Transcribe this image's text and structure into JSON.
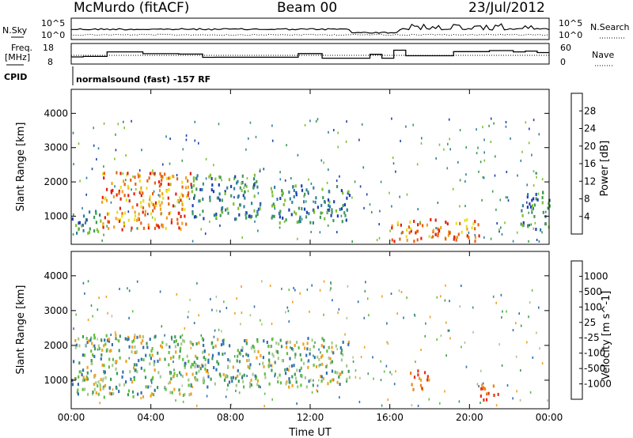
{
  "header": {
    "station": "McMurdo (fitACF)",
    "beam": "Beam 00",
    "date": "23/Jul/2012"
  },
  "top_panels": {
    "nsky_label": "N.Sky",
    "nsearch_label": "N.Search",
    "noise_ticks": [
      "10^5",
      "10^0"
    ],
    "freq_label_1": "Freq.",
    "freq_label_2": "[MHz]",
    "freq_ticks": [
      "18",
      "8"
    ],
    "nave_label": "Nave",
    "nave_ticks": [
      "60",
      "0"
    ],
    "cpid_label": "CPID",
    "cpid_text": "normalsound (fast) -157 RF"
  },
  "chart_data": [
    {
      "type": "heatmap",
      "panel": "power",
      "xlabel": "",
      "ylabel": "Slant Range [km]",
      "x_ticks": [
        "00:00",
        "04:00",
        "08:00",
        "12:00",
        "16:00",
        "20:00",
        "00:00"
      ],
      "y_ticks": [
        "1000",
        "2000",
        "3000",
        "4000"
      ],
      "ylim": [
        180,
        4700
      ],
      "colorbar_label": "Power [dB]",
      "colorbar_ticks": [
        "4",
        "8",
        "12",
        "16",
        "20",
        "24",
        "28"
      ],
      "colors": [
        "#0000ff",
        "#1f3fb0",
        "#2f7fa0",
        "#3e9a55",
        "#7fc030",
        "#e8e020",
        "#f0a020",
        "#e86010",
        "#e02010",
        "#ff0000"
      ],
      "regions": [
        {
          "t_start": 0.0,
          "t_end": 1.5,
          "r_min": 500,
          "r_max": 1200,
          "level": "mid"
        },
        {
          "t_start": 1.5,
          "t_end": 6.0,
          "r_min": 600,
          "r_max": 2300,
          "level": "high"
        },
        {
          "t_start": 6.0,
          "t_end": 9.5,
          "r_min": 900,
          "r_max": 2200,
          "level": "mid"
        },
        {
          "t_start": 10.0,
          "t_end": 14.0,
          "r_min": 800,
          "r_max": 1900,
          "level": "mid"
        },
        {
          "t_start": 16.0,
          "t_end": 20.5,
          "r_min": 250,
          "r_max": 900,
          "level": "high"
        },
        {
          "t_start": 22.5,
          "t_end": 24.0,
          "r_min": 600,
          "r_max": 1700,
          "level": "mid"
        }
      ]
    },
    {
      "type": "heatmap",
      "panel": "velocity",
      "xlabel": "Time UT",
      "ylabel": "Slant Range [km]",
      "x_ticks": [
        "00:00",
        "04:00",
        "08:00",
        "12:00",
        "16:00",
        "20:00",
        "00:00"
      ],
      "y_ticks": [
        "1000",
        "2000",
        "3000",
        "4000"
      ],
      "ylim": [
        180,
        4700
      ],
      "colorbar_label": "Velocity [m s^-1]",
      "colorbar_ticks": [
        "1000",
        "500",
        "100",
        "25",
        "-25",
        "-100",
        "-500",
        "-1000"
      ],
      "colors": [
        "#2030a0",
        "#306fb0",
        "#3e9a55",
        "#60c040",
        "#a8c890",
        "#c0c0c0",
        "#f0d060",
        "#f0a020",
        "#f08010",
        "#e83010",
        "#e00000"
      ],
      "regions": [
        {
          "t_start": 0.0,
          "t_end": 6.0,
          "r_min": 500,
          "r_max": 2300,
          "level": "positive"
        },
        {
          "t_start": 6.0,
          "t_end": 14.0,
          "r_min": 800,
          "r_max": 2200,
          "level": "positive"
        },
        {
          "t_start": 17.0,
          "t_end": 18.0,
          "r_min": 700,
          "r_max": 1300,
          "level": "negative"
        },
        {
          "t_start": 20.5,
          "t_end": 21.5,
          "r_min": 400,
          "r_max": 900,
          "level": "negative"
        }
      ]
    }
  ]
}
